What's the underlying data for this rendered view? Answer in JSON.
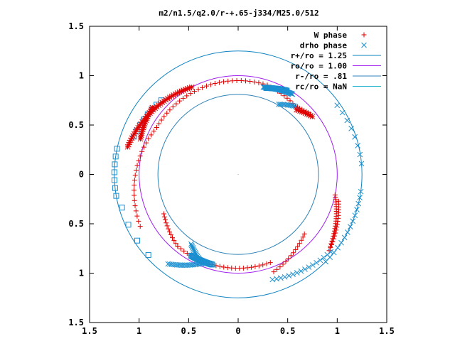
{
  "chart_data": {
    "type": "scatter",
    "title": "m2/n1.5/q2.0/r-+.65-j334/M25.0/512",
    "xlabel": "",
    "ylabel": "",
    "xlim": [
      -1.5,
      1.5
    ],
    "ylim": [
      -1.5,
      1.5
    ],
    "x_tick_values": [
      -1.5,
      -1,
      -0.5,
      0,
      0.5,
      1,
      1.5
    ],
    "x_tick_labels": [
      "1.5",
      "1",
      "0.5",
      "0",
      "0.5",
      "1",
      "1.5"
    ],
    "y_tick_values": [
      1.5,
      1,
      0.5,
      0,
      -0.5,
      -1,
      -1.5
    ],
    "y_tick_labels": [
      "1.5",
      "1",
      "0.5",
      "0",
      "0.5",
      "1",
      "1.5"
    ],
    "grid": false,
    "legend_position": "top-right",
    "circles": [
      {
        "name": "r+/ro = 1.25",
        "radius": 1.25,
        "color": "#0f83c2"
      },
      {
        "name": "ro/ro = 1.00",
        "radius": 1.0,
        "color": "#a020f0"
      },
      {
        "name": "r-/ro = .81",
        "radius": 0.81,
        "color": "#2d82b8"
      },
      {
        "name": "rc/ro = NaN",
        "radius": null,
        "color": "#22b5cc"
      }
    ],
    "series": [
      {
        "name": "W phase",
        "marker": "plus",
        "color": "#e00000",
        "arcs": [
          {
            "r_from": 1.12,
            "r_to": 0.95,
            "a_from": 208,
            "a_to": 150,
            "n": 22
          },
          {
            "r_from": 0.95,
            "r_to": 0.95,
            "a_from": 150,
            "a_to": 72,
            "n": 30
          },
          {
            "r_from": 0.95,
            "r_to": 0.9,
            "a_from": 72,
            "a_to": 50,
            "n": 10
          },
          {
            "r_from": 0.9,
            "r_to": 0.95,
            "a_from": 50,
            "a_to": 40,
            "n": 8
          },
          {
            "r_from": 0.95,
            "r_to": 0.95,
            "a_from": 290,
            "a_to": 230,
            "n": 26
          },
          {
            "r_from": 0.95,
            "r_to": 0.85,
            "a_from": 230,
            "a_to": 208,
            "n": 12
          },
          {
            "r_from": 0.9,
            "r_to": 1.05,
            "a_from": 318,
            "a_to": 290,
            "n": 14
          },
          {
            "r_from": 1.0,
            "r_to": 1.18,
            "a_from": 348,
            "a_to": 322,
            "n": 22
          },
          {
            "r_from": 1.05,
            "r_to": 1.2,
            "a_from": 345,
            "a_to": 320,
            "n": 18
          }
        ]
      },
      {
        "name": "drho phase",
        "marker": "cross",
        "color": "#1a8fd0",
        "arcs": [
          {
            "r_from": 1.12,
            "r_to": 1.22,
            "a_from": 288,
            "a_to": 320,
            "n": 16
          },
          {
            "r_from": 1.25,
            "r_to": 1.25,
            "a_from": 315,
            "a_to": 352,
            "n": 14
          },
          {
            "r_from": 1.25,
            "r_to": 1.22,
            "a_from": 5,
            "a_to": 35,
            "n": 8
          },
          {
            "r_from": 0.92,
            "r_to": 0.98,
            "a_from": 74,
            "a_to": 56,
            "n": 40
          },
          {
            "r_from": 0.82,
            "r_to": 0.9,
            "a_from": 60,
            "a_to": 50,
            "n": 12
          },
          {
            "r_from": 0.95,
            "r_to": 1.15,
            "a_from": 250,
            "a_to": 232,
            "n": 24
          },
          {
            "r_from": 0.85,
            "r_to": 0.95,
            "a_from": 236,
            "a_to": 246,
            "n": 14
          }
        ]
      },
      {
        "name": "drho phase",
        "marker": "square",
        "color": "#1a8fd0",
        "arcs": [
          {
            "r_from": 0.92,
            "r_to": 0.98,
            "a_from": 72,
            "a_to": 60,
            "n": 30
          },
          {
            "r_from": 0.95,
            "r_to": 0.95,
            "a_from": 240,
            "a_to": 254,
            "n": 28
          },
          {
            "r_from": 1.12,
            "r_to": 1.08,
            "a_from": 160,
            "a_to": 136,
            "n": 8
          },
          {
            "r_from": 1.25,
            "r_to": 1.25,
            "a_from": 168,
            "a_to": 190,
            "n": 7
          },
          {
            "r_from": 1.22,
            "r_to": 1.22,
            "a_from": 196,
            "a_to": 222,
            "n": 4
          }
        ]
      },
      {
        "name": "W phase",
        "marker": "star",
        "color": "#e00000",
        "arcs": [
          {
            "r_from": 1.15,
            "r_to": 1.0,
            "a_from": 166,
            "a_to": 118,
            "n": 40
          },
          {
            "r_from": 1.05,
            "r_to": 1.1,
            "a_from": 160,
            "a_to": 142,
            "n": 18
          },
          {
            "r_from": 0.88,
            "r_to": 0.95,
            "a_from": 48,
            "a_to": 38,
            "n": 10
          }
        ]
      }
    ]
  }
}
